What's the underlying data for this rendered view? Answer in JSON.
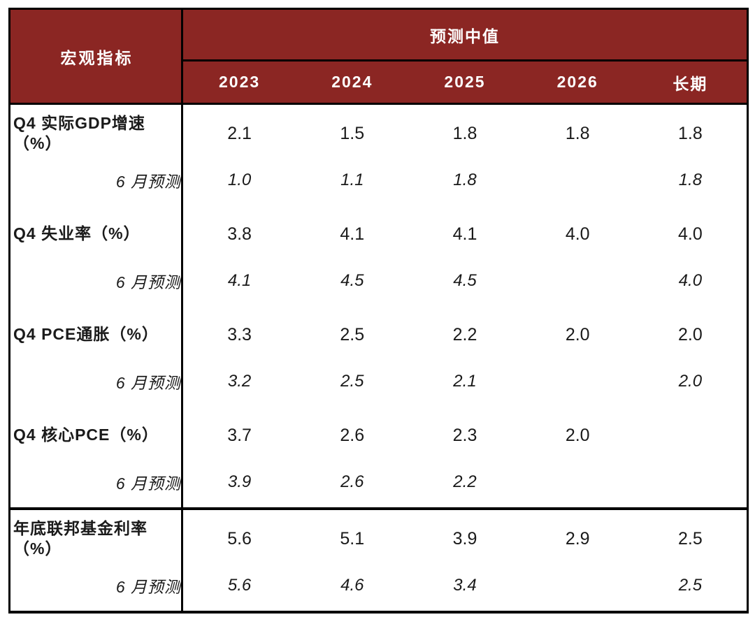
{
  "colors": {
    "header_bg": "#8B2623",
    "header_text": "#FFFFFF",
    "border": "#000000",
    "text": "#1A1A1A"
  },
  "chart_data": {
    "type": "table",
    "header": {
      "row_header": "宏观指标",
      "group_header": "预测中值",
      "columns": [
        "2023",
        "2024",
        "2025",
        "2026",
        "长期"
      ]
    },
    "sections": [
      {
        "label": "Q4 实际GDP增速（%）",
        "values": [
          "2.1",
          "1.5",
          "1.8",
          "1.8",
          "1.8"
        ],
        "forecast_label": "6 月预测",
        "forecast_values": [
          "1.0",
          "1.1",
          "1.8",
          "",
          "1.8"
        ]
      },
      {
        "label": "Q4 失业率（%）",
        "values": [
          "3.8",
          "4.1",
          "4.1",
          "4.0",
          "4.0"
        ],
        "forecast_label": "6 月预测",
        "forecast_values": [
          "4.1",
          "4.5",
          "4.5",
          "",
          "4.0"
        ]
      },
      {
        "label": "Q4 PCE通胀（%）",
        "values": [
          "3.3",
          "2.5",
          "2.2",
          "2.0",
          "2.0"
        ],
        "forecast_label": "6 月预测",
        "forecast_values": [
          "3.2",
          "2.5",
          "2.1",
          "",
          "2.0"
        ]
      },
      {
        "label": "Q4 核心PCE（%）",
        "values": [
          "3.7",
          "2.6",
          "2.3",
          "2.0",
          ""
        ],
        "forecast_label": "6 月预测",
        "forecast_values": [
          "3.9",
          "2.6",
          "2.2",
          "",
          ""
        ]
      },
      {
        "label": "年底联邦基金利率（%）",
        "values": [
          "5.6",
          "5.1",
          "3.9",
          "2.9",
          "2.5"
        ],
        "forecast_label": "6 月预测",
        "forecast_values": [
          "5.6",
          "4.6",
          "3.4",
          "",
          "2.5"
        ],
        "heavy_separator": true
      }
    ]
  }
}
